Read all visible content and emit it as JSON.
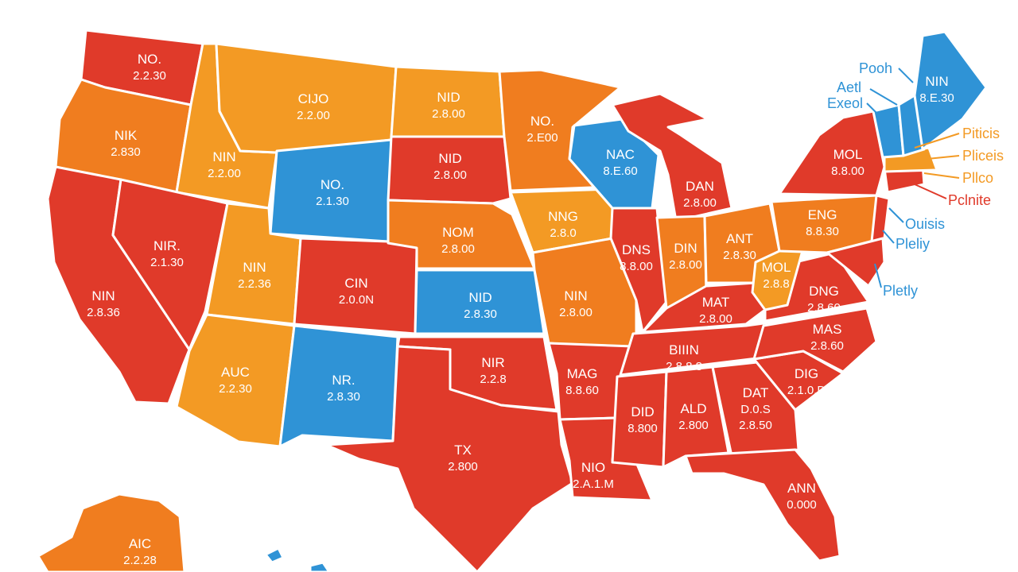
{
  "colors": {
    "red": "#e03a2a",
    "orange": "#f07d1f",
    "orange_light": "#f39a24",
    "blue": "#2f93d6",
    "white": "#ffffff"
  },
  "states": [
    {
      "id": "wa",
      "color": "red",
      "label": [
        "NO.",
        "2.2.30"
      ]
    },
    {
      "id": "or",
      "color": "orange",
      "label": [
        "NIK",
        "2.830"
      ]
    },
    {
      "id": "ca",
      "color": "red",
      "label": [
        "NIN",
        "2.8.36"
      ]
    },
    {
      "id": "id",
      "color": "orange_light",
      "label": [
        "NIN",
        "2.2.00"
      ]
    },
    {
      "id": "nv",
      "color": "red",
      "label": [
        "NIR.",
        "2.1.30"
      ]
    },
    {
      "id": "mt",
      "color": "orange_light",
      "label": [
        "CIJO",
        "2.2.00"
      ]
    },
    {
      "id": "wy",
      "color": "blue",
      "label": [
        "NO.",
        "2.1.30"
      ]
    },
    {
      "id": "ut",
      "color": "orange_light",
      "label": [
        "NIN",
        "2.2.36"
      ]
    },
    {
      "id": "az",
      "color": "orange_light",
      "label": [
        "AUC",
        "2.2.30"
      ]
    },
    {
      "id": "co",
      "color": "red",
      "label": [
        "CIN",
        "2.0.0N"
      ]
    },
    {
      "id": "nm",
      "color": "blue",
      "label": [
        "NR.",
        "2.8.30"
      ]
    },
    {
      "id": "nd",
      "color": "orange_light",
      "label": [
        "NID",
        "2.8.00"
      ]
    },
    {
      "id": "sd",
      "color": "red",
      "label": [
        "NID",
        "2.8.00"
      ]
    },
    {
      "id": "ne",
      "color": "orange",
      "label": [
        "NOM",
        "2.8.00"
      ]
    },
    {
      "id": "ks",
      "color": "blue",
      "label": [
        "NID",
        "2.8.30"
      ]
    },
    {
      "id": "ok",
      "color": "red",
      "label": [
        "NIR",
        "2.2.8"
      ]
    },
    {
      "id": "tx",
      "color": "red",
      "label": [
        "TX",
        "2.800"
      ]
    },
    {
      "id": "mn",
      "color": "orange",
      "label": [
        "NO.",
        "2.E00"
      ]
    },
    {
      "id": "ia",
      "color": "orange_light",
      "label": [
        "NNG",
        "2.8.0"
      ]
    },
    {
      "id": "mo",
      "color": "orange",
      "label": [
        "NIN",
        "2.8.00"
      ]
    },
    {
      "id": "ar",
      "color": "red",
      "label": [
        "MAG",
        "8.8.60"
      ]
    },
    {
      "id": "la",
      "color": "red",
      "label": [
        "NIO",
        "2.A.1.M"
      ]
    },
    {
      "id": "wi",
      "color": "blue",
      "label": [
        "NAC",
        "8.E.60"
      ]
    },
    {
      "id": "mi",
      "color": "red",
      "label": [
        "DAN",
        "2.8.00"
      ]
    },
    {
      "id": "il",
      "color": "red",
      "label": [
        "DNS",
        "8.8.00"
      ]
    },
    {
      "id": "in",
      "color": "orange",
      "label": [
        "DIN",
        "2.8.00"
      ]
    },
    {
      "id": "oh",
      "color": "orange",
      "label": [
        "ANT",
        "2.8.30"
      ]
    },
    {
      "id": "ky",
      "color": "red",
      "label": [
        "MAT",
        "2.8.00"
      ]
    },
    {
      "id": "tn",
      "color": "red",
      "label": [
        "BIIIN",
        "2.8.8.8"
      ]
    },
    {
      "id": "ms",
      "color": "red",
      "label": [
        "DID",
        "8.800"
      ]
    },
    {
      "id": "al",
      "color": "red",
      "label": [
        "ALD",
        "2.800"
      ]
    },
    {
      "id": "ga",
      "color": "red",
      "label": [
        "DAT",
        "D.0.S",
        "2.8.50"
      ]
    },
    {
      "id": "fl",
      "color": "red",
      "label": [
        "ANN",
        "0.000"
      ]
    },
    {
      "id": "sc",
      "color": "red",
      "label": [
        "DIG",
        "2.1.0.D"
      ]
    },
    {
      "id": "nc",
      "color": "red",
      "label": [
        "MAS",
        "2.8.60"
      ]
    },
    {
      "id": "va",
      "color": "red",
      "label": [
        "DNG",
        "2.8.60"
      ]
    },
    {
      "id": "wv",
      "color": "orange_light",
      "label": [
        "MOL",
        "2.8.8"
      ]
    },
    {
      "id": "pa",
      "color": "orange",
      "label": [
        "ENG",
        "8.8.30"
      ]
    },
    {
      "id": "ny",
      "color": "red",
      "label": [
        "MOL",
        "8.8.00"
      ]
    },
    {
      "id": "me",
      "color": "blue",
      "label": [
        "NIN",
        "8.E.30"
      ]
    },
    {
      "id": "vt",
      "color": "blue",
      "label": []
    },
    {
      "id": "nh",
      "color": "blue",
      "label": []
    },
    {
      "id": "ma",
      "color": "orange_light",
      "label": []
    },
    {
      "id": "ct",
      "color": "red",
      "label": []
    },
    {
      "id": "nj",
      "color": "red",
      "label": []
    },
    {
      "id": "md",
      "color": "red",
      "label": []
    },
    {
      "id": "ak",
      "color": "orange",
      "label": [
        "AIC",
        "2.2.28"
      ]
    },
    {
      "id": "hi",
      "color": "blue",
      "label": []
    }
  ],
  "callouts": [
    {
      "text": "Pooh",
      "color": "blue"
    },
    {
      "text": "Aetl",
      "color": "blue"
    },
    {
      "text": "Exeol",
      "color": "blue"
    },
    {
      "text": "Piticis",
      "color": "orange_light"
    },
    {
      "text": "Pliceis",
      "color": "orange_light"
    },
    {
      "text": "Pllco",
      "color": "orange_light"
    },
    {
      "text": "Pclnite",
      "color": "red"
    },
    {
      "text": "Ouisis",
      "color": "blue"
    },
    {
      "text": "Pleliy",
      "color": "blue"
    },
    {
      "text": "Pletly",
      "color": "blue"
    }
  ]
}
